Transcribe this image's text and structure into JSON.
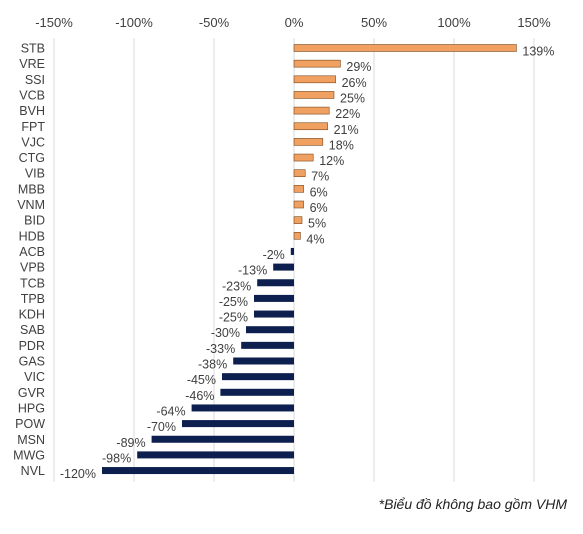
{
  "chart_data": {
    "type": "bar",
    "orientation": "horizontal",
    "categories": [
      "STB",
      "VRE",
      "SSI",
      "VCB",
      "BVH",
      "FPT",
      "VJC",
      "CTG",
      "VIB",
      "MBB",
      "VNM",
      "BID",
      "HDB",
      "ACB",
      "VPB",
      "TCB",
      "TPB",
      "KDH",
      "SAB",
      "PDR",
      "GAS",
      "VIC",
      "GVR",
      "HPG",
      "POW",
      "MSN",
      "MWG",
      "NVL"
    ],
    "values": [
      139,
      29,
      26,
      25,
      22,
      21,
      18,
      12,
      7,
      6,
      6,
      5,
      4,
      -2,
      -13,
      -23,
      -25,
      -25,
      -30,
      -33,
      -38,
      -45,
      -46,
      -64,
      -70,
      -89,
      -98,
      -120
    ],
    "data_labels": [
      "139%",
      "29%",
      "26%",
      "25%",
      "22%",
      "21%",
      "18%",
      "12%",
      "7%",
      "6%",
      "6%",
      "5%",
      "4%",
      "-2%",
      "-13%",
      "-23%",
      "-25%",
      "-25%",
      "-30%",
      "-33%",
      "-38%",
      "-45%",
      "-46%",
      "-64%",
      "-70%",
      "-89%",
      "-98%",
      "-120%"
    ],
    "xlim": [
      -150,
      150
    ],
    "xticks": [
      -150,
      -100,
      -50,
      0,
      50,
      100,
      150
    ],
    "xtick_labels": [
      "-150%",
      "-100%",
      "-50%",
      "0%",
      "50%",
      "100%",
      "150%"
    ],
    "x_axis_position": "top",
    "grid": "vertical",
    "colors": {
      "positive": "#f0a060",
      "positive_stroke": "#7a4a1e",
      "negative": "#0c1f4e",
      "grid": "#d9d9d9"
    }
  },
  "footnote": "*Biểu đồ không bao gồm VHM"
}
